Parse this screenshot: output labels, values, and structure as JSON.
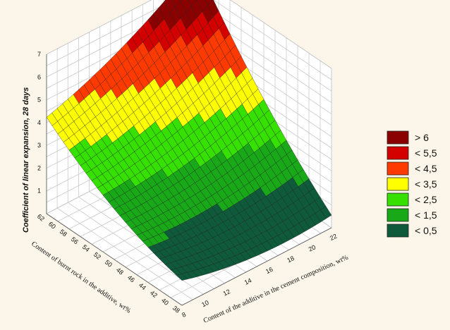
{
  "chart_data": {
    "type": "surface",
    "zlabel": "Coefficient of linear expansion, 28 days",
    "xlabel": "Content of the additive in the cement composition, wt%",
    "ylabel": "Content of burnt rock in the additive, wt%",
    "x_ticks": [
      "8",
      "10",
      "12",
      "14",
      "16",
      "18",
      "20",
      "22"
    ],
    "y_ticks": [
      "38",
      "40",
      "42",
      "44",
      "46",
      "48",
      "50",
      "52",
      "54",
      "56",
      "58",
      "60",
      "62"
    ],
    "z_ticks": [
      "1",
      "2",
      "3",
      "4",
      "5",
      "6",
      "7"
    ],
    "xlim": [
      8,
      22
    ],
    "ylim": [
      38,
      62
    ],
    "zlim": [
      0,
      7
    ],
    "corners": {
      "x8_y62": 3.5,
      "x8_y38": 0.9,
      "x22_y62": 7.0,
      "x22_y38": 0.5
    },
    "legend": [
      {
        "label": "> 6",
        "color": "#8b0000"
      },
      {
        "label": "< 5,5",
        "color": "#d40000"
      },
      {
        "label": "< 4,5",
        "color": "#ff3a00"
      },
      {
        "label": "< 3,5",
        "color": "#ffff00"
      },
      {
        "label": "< 2,5",
        "color": "#36e000"
      },
      {
        "label": "< 1,5",
        "color": "#18a818"
      },
      {
        "label": "< 0,5",
        "color": "#0e5a3a"
      }
    ]
  }
}
